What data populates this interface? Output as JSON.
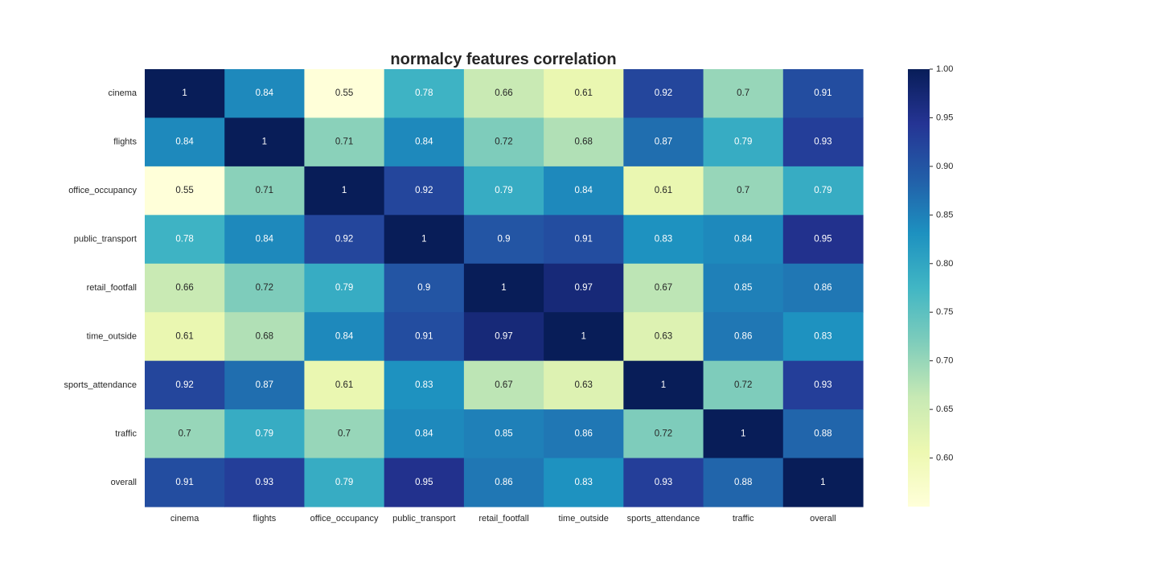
{
  "chart_data": {
    "type": "heatmap",
    "title": "normalcy features correlation",
    "rows": [
      "cinema",
      "flights",
      "office_occupancy",
      "public_transport",
      "retail_footfall",
      "time_outside",
      "sports_attendance",
      "traffic",
      "overall"
    ],
    "columns": [
      "cinema",
      "flights",
      "office_occupancy",
      "public_transport",
      "retail_footfall",
      "time_outside",
      "sports_attendance",
      "traffic",
      "overall"
    ],
    "values": [
      [
        1,
        0.84,
        0.55,
        0.78,
        0.66,
        0.61,
        0.92,
        0.7,
        0.91
      ],
      [
        0.84,
        1,
        0.71,
        0.84,
        0.72,
        0.68,
        0.87,
        0.79,
        0.93
      ],
      [
        0.55,
        0.71,
        1,
        0.92,
        0.79,
        0.84,
        0.61,
        0.7,
        0.79
      ],
      [
        0.78,
        0.84,
        0.92,
        1,
        0.9,
        0.91,
        0.83,
        0.84,
        0.95
      ],
      [
        0.66,
        0.72,
        0.79,
        0.9,
        1,
        0.97,
        0.67,
        0.85,
        0.86
      ],
      [
        0.61,
        0.68,
        0.84,
        0.91,
        0.97,
        1,
        0.63,
        0.86,
        0.83
      ],
      [
        0.92,
        0.87,
        0.61,
        0.83,
        0.67,
        0.63,
        1,
        0.72,
        0.93
      ],
      [
        0.7,
        0.79,
        0.7,
        0.84,
        0.85,
        0.86,
        0.72,
        1,
        0.88
      ],
      [
        0.91,
        0.93,
        0.79,
        0.95,
        0.86,
        0.83,
        0.93,
        0.88,
        1
      ]
    ],
    "annotated": true,
    "colormap": "YlGnBu",
    "colorbar": {
      "vmin": 0.55,
      "vmax": 1.0,
      "ticks": [
        0.6,
        0.65,
        0.7,
        0.75,
        0.8,
        0.85,
        0.9,
        0.95,
        1.0
      ],
      "tick_labels": [
        "0.60",
        "0.65",
        "0.70",
        "0.75",
        "0.80",
        "0.85",
        "0.90",
        "0.95",
        "1.00"
      ]
    },
    "colorscale_stops": [
      "#ffffd9",
      "#edf8b1",
      "#c7e9b4",
      "#7fcdbb",
      "#41b6c4",
      "#1d91c0",
      "#225ea8",
      "#253494",
      "#081d58"
    ],
    "annotation_text_colors": {
      "light": "#ffffff",
      "dark": "#262626"
    }
  }
}
